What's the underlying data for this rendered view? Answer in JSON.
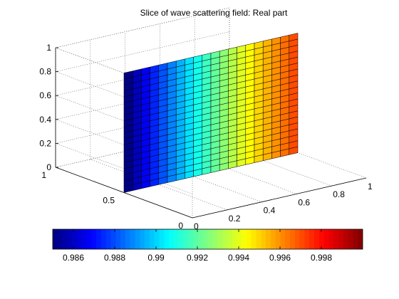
{
  "chart_data": {
    "type": "surface",
    "title": "Slice of wave scattering field: Real part",
    "x_axis": {
      "ticks": [
        0,
        0.2,
        0.4,
        0.6,
        0.8,
        1
      ],
      "tick_labels": [
        "0",
        "0.2",
        "0.4",
        "0.6",
        "0.8",
        "1"
      ],
      "range": [
        0,
        1
      ]
    },
    "y_axis": {
      "ticks": [
        0,
        0.5,
        1
      ],
      "tick_labels": [
        "0",
        "0.5",
        "1"
      ],
      "range": [
        0,
        1
      ]
    },
    "z_axis": {
      "ticks": [
        0,
        0.2,
        0.4,
        0.6,
        0.8,
        1
      ],
      "tick_labels": [
        "0",
        "0.2",
        "0.4",
        "0.6",
        "0.8",
        "1"
      ],
      "range": [
        0,
        1
      ]
    },
    "grid": true,
    "colormap": "jet",
    "slice": {
      "plane": "y = 0.5",
      "x_range": [
        0,
        1
      ],
      "z_range": [
        0,
        1
      ],
      "grid_columns": 20,
      "grid_rows": 20
    },
    "color_values_along_x": [
      0.9851,
      0.9859,
      0.9867,
      0.9874,
      0.9881,
      0.9888,
      0.9895,
      0.9902,
      0.9909,
      0.9915,
      0.9921,
      0.9927,
      0.9933,
      0.9939,
      0.9944,
      0.995,
      0.9955,
      0.996,
      0.9965,
      0.997
    ],
    "colorbar": {
      "range": [
        0.985,
        1.0
      ],
      "ticks": [
        0.986,
        0.988,
        0.99,
        0.992,
        0.994,
        0.996,
        0.998
      ],
      "tick_labels": [
        "0.986",
        "0.988",
        "0.99",
        "0.992",
        "0.994",
        "0.996",
        "0.998"
      ]
    }
  }
}
